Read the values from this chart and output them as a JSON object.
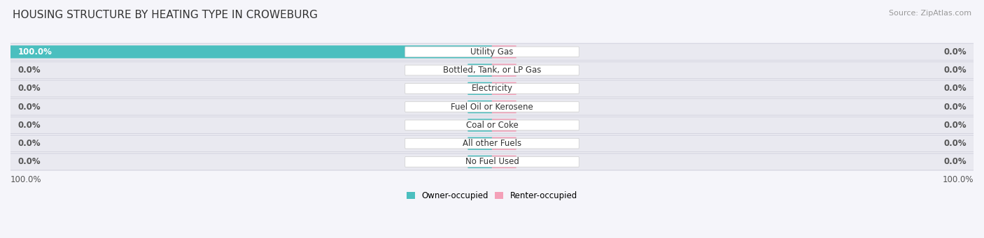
{
  "title": "HOUSING STRUCTURE BY HEATING TYPE IN CROWEBURG",
  "source": "Source: ZipAtlas.com",
  "categories": [
    "Utility Gas",
    "Bottled, Tank, or LP Gas",
    "Electricity",
    "Fuel Oil or Kerosene",
    "Coal or Coke",
    "All other Fuels",
    "No Fuel Used"
  ],
  "owner_values": [
    100.0,
    0.0,
    0.0,
    0.0,
    0.0,
    0.0,
    0.0
  ],
  "renter_values": [
    0.0,
    0.0,
    0.0,
    0.0,
    0.0,
    0.0,
    0.0
  ],
  "owner_color": "#4BBFBF",
  "renter_color": "#F4A0B8",
  "row_bg_color": "#E9E9F0",
  "row_edge_color": "#D0D0DC",
  "fig_bg_color": "#F5F5FA",
  "label_bg_color": "#FFFFFF",
  "label_edge_color": "#CCCCCC",
  "value_color": "#555555",
  "title_color": "#333333",
  "source_color": "#999999",
  "axis_max": 100.0,
  "min_stub": 5.0,
  "title_fontsize": 11,
  "source_fontsize": 8,
  "bar_label_fontsize": 8.5,
  "cat_label_fontsize": 8.5,
  "tick_fontsize": 8.5,
  "legend_fontsize": 8.5
}
